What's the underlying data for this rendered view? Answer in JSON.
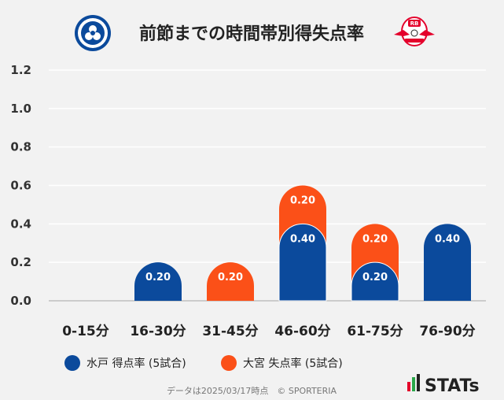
{
  "chart_data": {
    "type": "bar",
    "title": "前節までの時間帯別得失点率",
    "categories": [
      "0-15分",
      "16-30分",
      "31-45分",
      "46-60分",
      "61-75分",
      "76-90分"
    ],
    "series": [
      {
        "name": "水戸 得点率 (5試合)",
        "values": [
          0,
          0.2,
          0,
          0.4,
          0.2,
          0.4
        ],
        "color": "#0b4a9c"
      },
      {
        "name": "大宮 失点率 (5試合)",
        "values": [
          0,
          0,
          0.2,
          0.2,
          0.2,
          0
        ],
        "color": "#fb5018"
      }
    ],
    "stacked": true,
    "ylim": [
      0,
      1.2
    ],
    "yticks": [
      "0.0",
      "0.2",
      "0.4",
      "0.6",
      "0.8",
      "1.0",
      "1.2"
    ],
    "grid": true,
    "legend": "bottom",
    "xlabel": "",
    "ylabel": ""
  },
  "logos": {
    "left": {
      "icon": "mito-hollyhock-emblem-icon",
      "text": "MITO HOLLYHOCK",
      "color": "#0b4a9c"
    },
    "right": {
      "icon": "rb-omiya-ardija-emblem-icon",
      "text": "RB OMIYA ARDIJA",
      "color": "#e4002b"
    }
  },
  "footer": {
    "text": "データは2025/03/17時点　© SPORTERIA"
  },
  "brand": {
    "text": "STATs",
    "icon": "stats-bars-icon"
  }
}
